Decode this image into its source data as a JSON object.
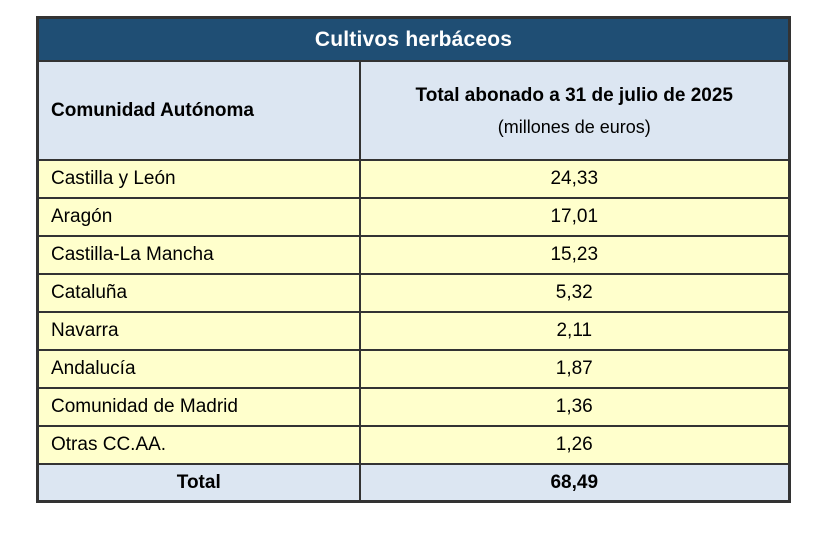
{
  "colors": {
    "title_bar_bg": "#1F4E74",
    "title_text": "#FFFFFF",
    "header_bg": "#DCE6F2",
    "row_bg": "#FFFFCC",
    "total_bg": "#DCE6F2",
    "border": "#333333",
    "text": "#000000"
  },
  "table": {
    "title": "Cultivos herbáceos",
    "header": {
      "col1": "Comunidad Autónoma",
      "col2_main": "Total abonado a 31 de julio de 2025",
      "col2_sub": "(millones de euros)"
    },
    "rows": [
      {
        "region": "Castilla y León",
        "value": "24,33"
      },
      {
        "region": "Aragón",
        "value": "17,01"
      },
      {
        "region": "Castilla-La Mancha",
        "value": "15,23"
      },
      {
        "region": "Cataluña",
        "value": "5,32"
      },
      {
        "region": "Navarra",
        "value": "2,11"
      },
      {
        "region": "Andalucía",
        "value": "1,87"
      },
      {
        "region": "Comunidad de Madrid",
        "value": "1,36"
      },
      {
        "region": "Otras CC.AA.",
        "value": "1,26"
      }
    ],
    "total": {
      "label": "Total",
      "value": "68,49"
    }
  },
  "chart_data": {
    "type": "table",
    "title": "Cultivos herbáceos",
    "columns": [
      "Comunidad Autónoma",
      "Total abonado a 31 de julio de 2025 (millones de euros)"
    ],
    "rows": [
      [
        "Castilla y León",
        24.33
      ],
      [
        "Aragón",
        17.01
      ],
      [
        "Castilla-La Mancha",
        15.23
      ],
      [
        "Cataluña",
        5.32
      ],
      [
        "Navarra",
        2.11
      ],
      [
        "Andalucía",
        1.87
      ],
      [
        "Comunidad de Madrid",
        1.36
      ],
      [
        "Otras CC.AA.",
        1.26
      ]
    ],
    "total_row": [
      "Total",
      68.49
    ],
    "units": "millones de euros",
    "as_of_date": "31 de julio de 2025"
  }
}
